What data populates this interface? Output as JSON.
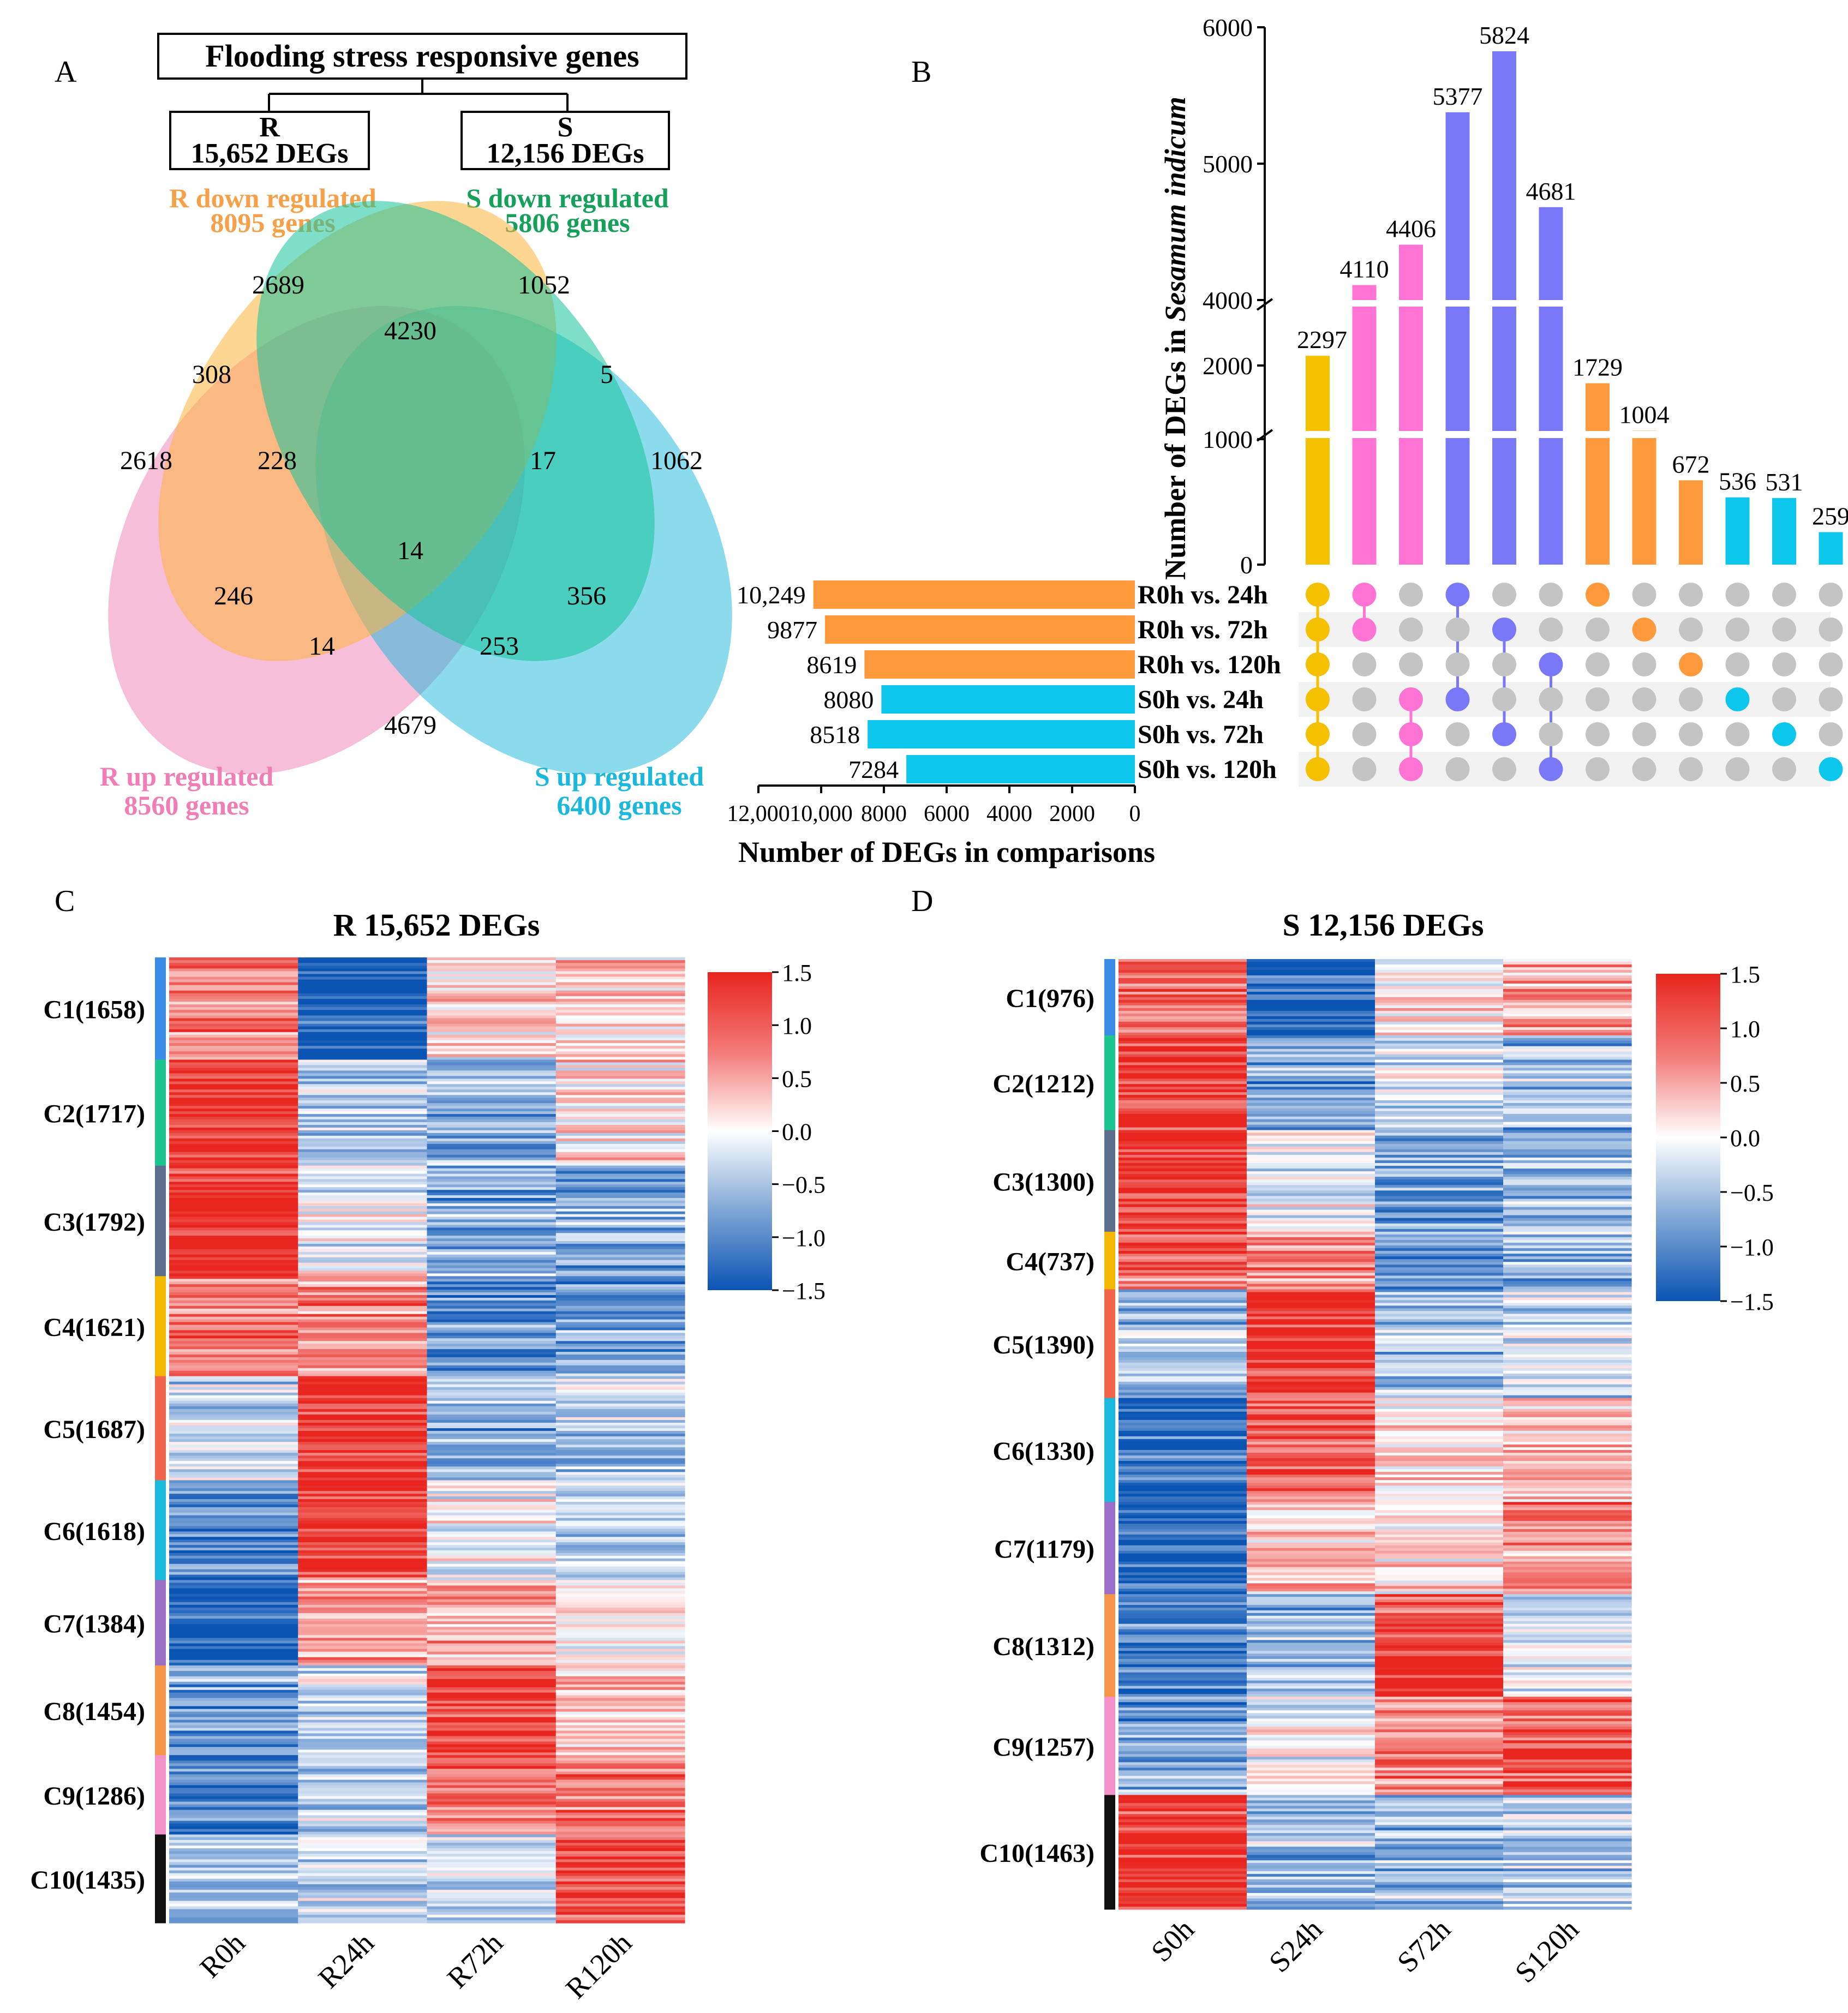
{
  "figure_labels": [
    "A",
    "B",
    "C",
    "D"
  ],
  "panel_a": {
    "title": "Flooding stress responsive genes",
    "r_box": {
      "name": "R",
      "count": "15,652 DEGs"
    },
    "s_box": {
      "name": "S",
      "count": "12,156 DEGs"
    },
    "sets": [
      {
        "line1": "R down regulated",
        "line2": "8095 genes",
        "color": "#F7A04A"
      },
      {
        "line1": "S down regulated",
        "line2": "5806 genes",
        "color": "#16A05A"
      },
      {
        "line1": "R up regulated",
        "line2": "8560 genes",
        "color": "#F07DB4"
      },
      {
        "line1": "S up regulated",
        "line2": "6400 genes",
        "color": "#19B8DC"
      }
    ],
    "regions": [
      "2689",
      "1052",
      "4230",
      "308",
      "5",
      "2618",
      "228",
      "17",
      "1062",
      "14",
      "246",
      "356",
      "14",
      "253",
      "4679"
    ]
  },
  "chart_data": [
    {
      "type": "bar",
      "panel": "B-intersections",
      "ylabel": "Number of DEGs in Sesamum indicum",
      "ylabel_parts": [
        "Number of DEGs in ",
        "Sesamum indicum"
      ],
      "axis_segments": [
        {
          "range": [
            0,
            1000
          ],
          "ticks": [
            "0",
            "1000"
          ]
        },
        {
          "range": [
            1000,
            2000
          ],
          "ticks": [
            "2000"
          ]
        },
        {
          "range": [
            4000,
            6000
          ],
          "ticks": [
            "4000",
            "5000",
            "6000"
          ]
        }
      ],
      "values": [
        2297,
        4110,
        4406,
        5377,
        5824,
        4681,
        1729,
        1004,
        672,
        536,
        531,
        259
      ],
      "labels": [
        "2297",
        "4110",
        "4406",
        "5377",
        "5824",
        "4681",
        "1729",
        "1004",
        "672",
        "536",
        "531",
        "259"
      ],
      "colors": [
        "#F5C000",
        "#FF73D4",
        "#FF73D4",
        "#7878F8",
        "#7878F8",
        "#7878F8",
        "#FF9A3C",
        "#FF9A3C",
        "#FF9A3C",
        "#0DC6EC",
        "#0DC6EC",
        "#0DC6EC"
      ],
      "membership": [
        [
          0,
          1,
          2,
          3,
          4,
          5
        ],
        [
          0,
          1
        ],
        [
          3,
          4,
          5
        ],
        [
          0,
          3
        ],
        [
          1,
          4
        ],
        [
          2,
          5
        ],
        [
          0
        ],
        [
          1
        ],
        [
          2
        ],
        [
          3
        ],
        [
          4
        ],
        [
          5
        ]
      ]
    },
    {
      "type": "bar",
      "panel": "B-set-sizes",
      "orientation": "horizontal",
      "categories": [
        "R0h vs. 24h",
        "R0h vs. 72h",
        "R0h vs. 120h",
        "S0h vs. 24h",
        "S0h vs. 72h",
        "S0h vs. 120h"
      ],
      "values": [
        10249,
        9877,
        8619,
        8080,
        8518,
        7284
      ],
      "labels": [
        "10,249",
        "9877",
        "8619",
        "8080",
        "8518",
        "7284"
      ],
      "colors": [
        "#FF9A3C",
        "#FF9A3C",
        "#FF9A3C",
        "#0DC6EC",
        "#0DC6EC",
        "#0DC6EC"
      ],
      "xlabel": "Number of DEGs in comparisons",
      "xlim": [
        12000,
        0
      ],
      "ticks": [
        "12,000",
        "10,000",
        "8000",
        "6000",
        "4000",
        "2000",
        "0"
      ]
    },
    {
      "type": "heatmap",
      "panel": "C",
      "title": "R 15,652 DEGs",
      "columns": [
        "R0h",
        "R24h",
        "R72h",
        "R120h"
      ],
      "clusters": [
        {
          "label": "C1(1658)",
          "n": 1658,
          "color": "#3B8BE8",
          "profile": [
            0.9,
            -1.45,
            0.2,
            0.3
          ]
        },
        {
          "label": "C2(1717)",
          "n": 1717,
          "color": "#1DC58E",
          "profile": [
            1.35,
            -0.55,
            -0.6,
            0.2
          ]
        },
        {
          "label": "C3(1792)",
          "n": 1792,
          "color": "#5B6E8E",
          "profile": [
            1.45,
            -0.1,
            -0.7,
            -0.75
          ]
        },
        {
          "label": "C4(1621)",
          "n": 1621,
          "color": "#F5B800",
          "profile": [
            0.95,
            0.8,
            -0.9,
            -0.8
          ]
        },
        {
          "label": "C5(1687)",
          "n": 1687,
          "color": "#F2654A",
          "profile": [
            -0.25,
            1.45,
            -0.65,
            -0.45
          ]
        },
        {
          "label": "C6(1618)",
          "n": 1618,
          "color": "#19B8DC",
          "profile": [
            -0.9,
            1.3,
            0.05,
            -0.3
          ]
        },
        {
          "label": "C7(1384)",
          "n": 1384,
          "color": "#9B6FC8",
          "profile": [
            -1.4,
            0.6,
            0.5,
            0.1
          ]
        },
        {
          "label": "C8(1454)",
          "n": 1454,
          "color": "#F5964A",
          "profile": [
            -0.8,
            -0.3,
            1.35,
            0.35
          ]
        },
        {
          "label": "C9(1286)",
          "n": 1286,
          "color": "#F292C8",
          "profile": [
            -0.95,
            -0.45,
            1.0,
            0.85
          ]
        },
        {
          "label": "C10(1435)",
          "n": 1435,
          "color": "#111111",
          "profile": [
            -0.55,
            -0.4,
            -0.2,
            1.35
          ]
        }
      ],
      "colorbar": {
        "min": -1.5,
        "max": 1.5,
        "ticks": [
          "1.5",
          "1.0",
          "0.5",
          "0.0",
          "−0.5",
          "−1.0",
          "−1.5"
        ]
      }
    },
    {
      "type": "heatmap",
      "panel": "D",
      "title": "S 12,156 DEGs",
      "columns": [
        "S0h",
        "S24h",
        "S72h",
        "S120h"
      ],
      "clusters": [
        {
          "label": "C1(976)",
          "n": 976,
          "color": "#3B8BE8",
          "profile": [
            0.95,
            -1.45,
            0.15,
            0.55
          ]
        },
        {
          "label": "C2(1212)",
          "n": 1212,
          "color": "#1DC58E",
          "profile": [
            1.45,
            -0.7,
            -0.2,
            -0.6
          ]
        },
        {
          "label": "C3(1300)",
          "n": 1300,
          "color": "#5B6E8E",
          "profile": [
            1.45,
            -0.15,
            -0.8,
            -0.55
          ]
        },
        {
          "label": "C4(737)",
          "n": 737,
          "color": "#F5B800",
          "profile": [
            1.05,
            0.75,
            -0.95,
            -0.6
          ]
        },
        {
          "label": "C5(1390)",
          "n": 1390,
          "color": "#F2654A",
          "profile": [
            -0.6,
            1.45,
            -0.55,
            -0.35
          ]
        },
        {
          "label": "C6(1330)",
          "n": 1330,
          "color": "#19B8DC",
          "profile": [
            -1.3,
            1.0,
            0.1,
            0.35
          ]
        },
        {
          "label": "C7(1179)",
          "n": 1179,
          "color": "#9B6FC8",
          "profile": [
            -1.45,
            0.45,
            0.25,
            0.8
          ]
        },
        {
          "label": "C8(1312)",
          "n": 1312,
          "color": "#F5964A",
          "profile": [
            -1.0,
            -0.5,
            1.35,
            -0.1
          ]
        },
        {
          "label": "C9(1257)",
          "n": 1257,
          "color": "#F292C8",
          "profile": [
            -0.9,
            -0.1,
            0.75,
            1.1
          ]
        },
        {
          "label": "C10(1463)",
          "n": 1463,
          "color": "#111111",
          "profile": [
            1.4,
            -0.55,
            -0.6,
            -0.5
          ]
        }
      ],
      "colorbar": {
        "min": -1.5,
        "max": 1.5,
        "ticks": [
          "1.5",
          "1.0",
          "0.5",
          "0.0",
          "−0.5",
          "−1.0",
          "−1.5"
        ]
      }
    }
  ]
}
